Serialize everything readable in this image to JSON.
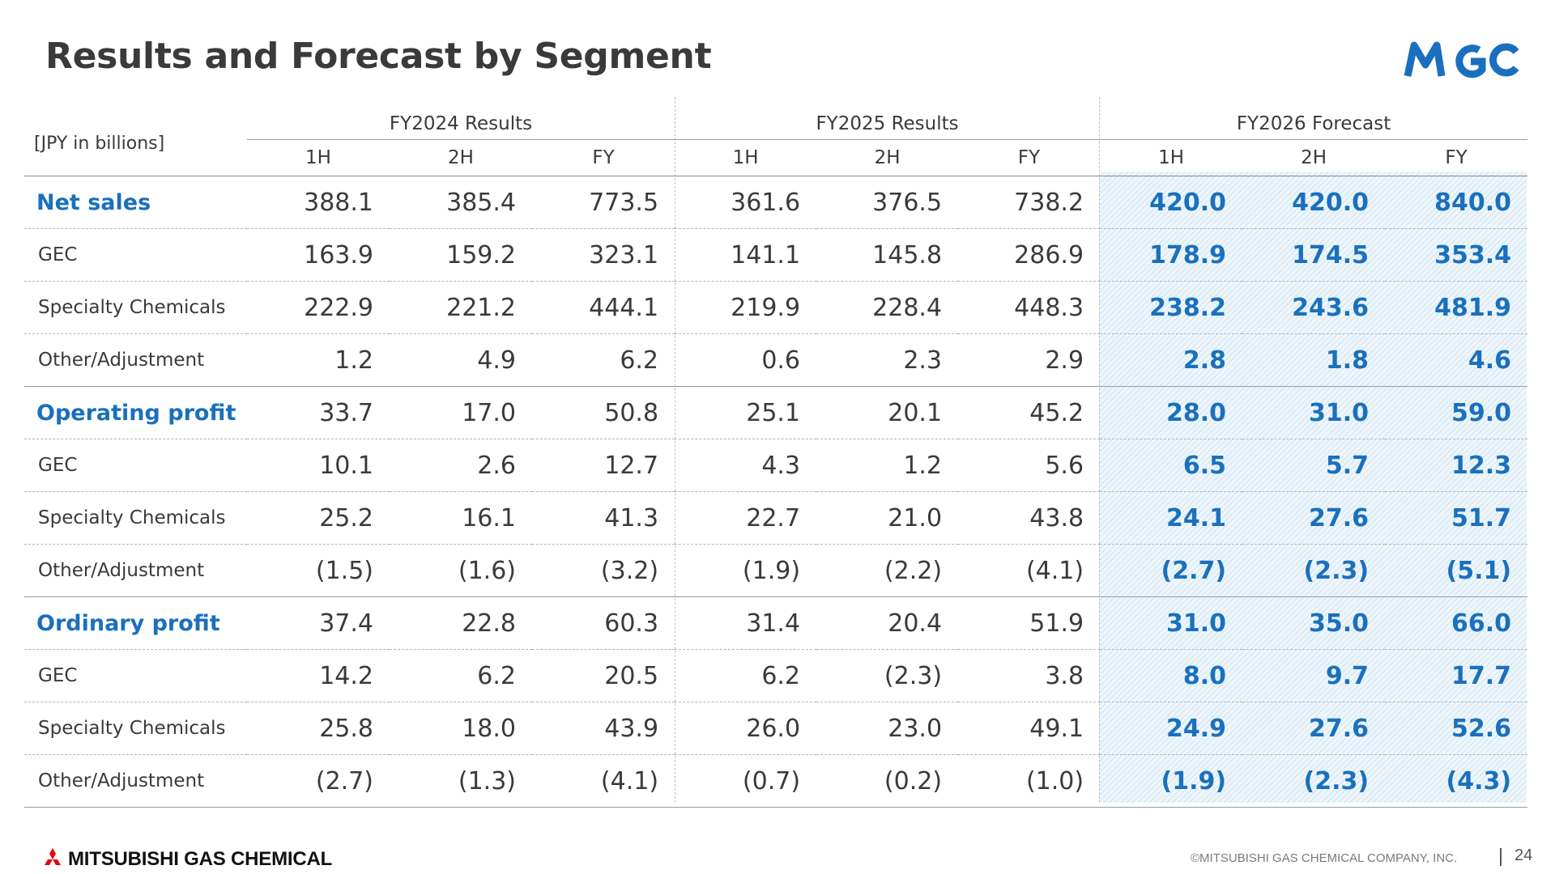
{
  "title": "Results and Forecast by Segment",
  "logo_text": "MGC",
  "unit": "[JPY in billions]",
  "groups": [
    "FY2024 Results",
    "FY2025 Results",
    "FY2026 Forecast"
  ],
  "periods": [
    "1H",
    "2H",
    "FY"
  ],
  "colors": {
    "accent": "#1a70bd",
    "text": "#3a3a3a",
    "forecast_bg": "#eef6fb"
  },
  "rows": [
    {
      "label": "Net sales",
      "values": [
        "388.1",
        "385.4",
        "773.5",
        "361.6",
        "376.5",
        "738.2",
        "420.0",
        "420.0",
        "840.0"
      ]
    },
    {
      "label": "GEC",
      "values": [
        "163.9",
        "159.2",
        "323.1",
        "141.1",
        "145.8",
        "286.9",
        "178.9",
        "174.5",
        "353.4"
      ]
    },
    {
      "label": "Specialty Chemicals",
      "values": [
        "222.9",
        "221.2",
        "444.1",
        "219.9",
        "228.4",
        "448.3",
        "238.2",
        "243.6",
        "481.9"
      ]
    },
    {
      "label": "Other/Adjustment",
      "values": [
        "1.2",
        "4.9",
        "6.2",
        "0.6",
        "2.3",
        "2.9",
        "2.8",
        "1.8",
        "4.6"
      ]
    },
    {
      "label": "Operating profit",
      "values": [
        "33.7",
        "17.0",
        "50.8",
        "25.1",
        "20.1",
        "45.2",
        "28.0",
        "31.0",
        "59.0"
      ]
    },
    {
      "label": "GEC",
      "values": [
        "10.1",
        "2.6",
        "12.7",
        "4.3",
        "1.2",
        "5.6",
        "6.5",
        "5.7",
        "12.3"
      ]
    },
    {
      "label": "Specialty Chemicals",
      "values": [
        "25.2",
        "16.1",
        "41.3",
        "22.7",
        "21.0",
        "43.8",
        "24.1",
        "27.6",
        "51.7"
      ]
    },
    {
      "label": "Other/Adjustment",
      "values": [
        "(1.5)",
        "(1.6)",
        "(3.2)",
        "(1.9)",
        "(2.2)",
        "(4.1)",
        "(2.7)",
        "(2.3)",
        "(5.1)"
      ]
    },
    {
      "label": "Ordinary profit",
      "values": [
        "37.4",
        "22.8",
        "60.3",
        "31.4",
        "20.4",
        "51.9",
        "31.0",
        "35.0",
        "66.0"
      ]
    },
    {
      "label": "GEC",
      "values": [
        "14.2",
        "6.2",
        "20.5",
        "6.2",
        "(2.3)",
        "3.8",
        "8.0",
        "9.7",
        "17.7"
      ]
    },
    {
      "label": "Specialty Chemicals",
      "values": [
        "25.8",
        "18.0",
        "43.9",
        "26.0",
        "23.0",
        "49.1",
        "24.9",
        "27.6",
        "52.6"
      ]
    },
    {
      "label": "Other/Adjustment",
      "values": [
        "(2.7)",
        "(1.3)",
        "(4.1)",
        "(0.7)",
        "(0.2)",
        "(1.0)",
        "(1.9)",
        "(2.3)",
        "(4.3)"
      ]
    }
  ],
  "footer": {
    "company_logo": "MITSUBISHI GAS CHEMICAL",
    "copyright": "©MITSUBISHI GAS CHEMICAL COMPANY, INC.",
    "page_number": "24"
  }
}
